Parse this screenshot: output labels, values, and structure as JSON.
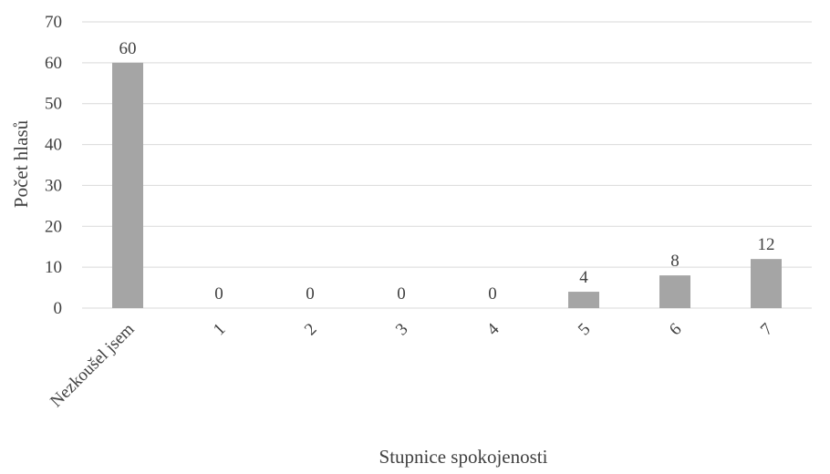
{
  "chart_data": {
    "type": "bar",
    "categories": [
      "Nezkoušel jsem",
      "1",
      "2",
      "3",
      "4",
      "5",
      "6",
      "7"
    ],
    "values": [
      60,
      0,
      0,
      0,
      0,
      4,
      8,
      12
    ],
    "data_labels": [
      "60",
      "0",
      "0",
      "0",
      "0",
      "4",
      "8",
      "12"
    ],
    "title": "",
    "xlabel": "Stupnice spokojenosti",
    "ylabel": "Počet hlasů",
    "ylim": [
      0,
      70
    ],
    "yticks": [
      0,
      10,
      20,
      30,
      40,
      50,
      60,
      70
    ],
    "grid": true,
    "legend": "none",
    "bar_color": "#a5a5a5"
  }
}
